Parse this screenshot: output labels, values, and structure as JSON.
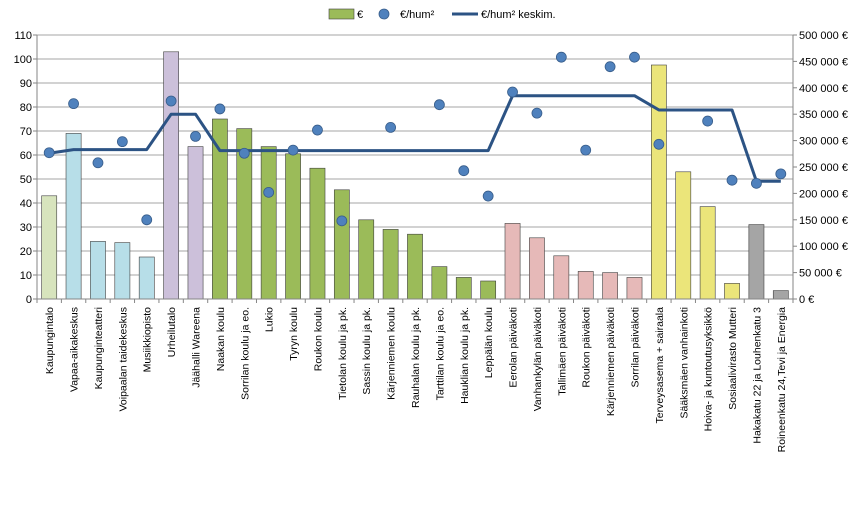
{
  "chart_data": {
    "type": "bar",
    "categories": [
      "Kaupungintalo",
      "Vapaa-aikakeskus",
      "Kaupunginteatteri",
      "Voipaalan taidekeskus",
      "Musiikkiopisto",
      "Urheilutalo",
      "Jäähalli Wareena",
      "Naakan koulu",
      "Sorrilan koulu ja eo.",
      "Lukio",
      "Tyryn koulu",
      "Roukon koulu",
      "Tietolan koulu ja pk.",
      "Sassin koulu ja pk.",
      "Kärjenniemen koulu",
      "Rauhalan koulu ja pk.",
      "Tarttilan koulu ja eo.",
      "Hauklian koulu ja pk.",
      "Leppälän koulu",
      "Eerolan päiväkoti",
      "Vanhankylän päiväkoti",
      "Tallimäen päiväkoti",
      "Roukon päiväkoti",
      "Kärjenniemen päiväkoti",
      "Sorrilan päiväkoti",
      "Terveysasema + sairaala",
      "Sääksmäen vanhainkoti",
      "Hoiva- ja kuntoutusyksikkö",
      "Sosiaalivirasto Mutteri",
      "Hakakatu 22 ja Louhenkatu 3",
      "Roineenkatu 24,Tevi ja Energia"
    ],
    "series": [
      {
        "name": "€",
        "axis": "left",
        "type": "bar",
        "values": [
          43,
          69,
          24,
          23.5,
          17.5,
          103,
          63.5,
          75,
          71,
          63.5,
          60.5,
          54.5,
          45.5,
          33,
          29,
          27,
          13.5,
          9,
          7.5,
          31.5,
          25.5,
          18,
          11.5,
          11,
          9,
          97.5,
          53,
          38.5,
          6.5,
          31,
          3.5
        ],
        "colors": [
          "#d7e4bd",
          "#b7dee8",
          "#b7dee8",
          "#b7dee8",
          "#b7dee8",
          "#ccc0da",
          "#ccc0da",
          "#9bbb59",
          "#9bbb59",
          "#9bbb59",
          "#9bbb59",
          "#9bbb59",
          "#9bbb59",
          "#9bbb59",
          "#9bbb59",
          "#9bbb59",
          "#9bbb59",
          "#9bbb59",
          "#9bbb59",
          "#e6b9b8",
          "#e6b9b8",
          "#e6b9b8",
          "#e6b9b8",
          "#e6b9b8",
          "#e6b9b8",
          "#ebe57a",
          "#ebe57a",
          "#ebe57a",
          "#ebe57a",
          "#a5a5a5",
          "#a5a5a5"
        ]
      },
      {
        "name": "€/hum²",
        "axis": "right",
        "type": "scatter",
        "color": "#4f81bd",
        "values": [
          277000,
          370000,
          258000,
          298000,
          150000,
          375000,
          308000,
          360000,
          276000,
          202000,
          282000,
          320000,
          148000,
          null,
          325000,
          null,
          368000,
          243000,
          195000,
          392000,
          352000,
          458000,
          282000,
          440000,
          458000,
          293000,
          null,
          337000,
          225000,
          219000,
          237000
        ]
      },
      {
        "name": "€/hum² keskim.",
        "axis": "right",
        "type": "line",
        "color": "#2c5384",
        "values": [
          276000,
          283000,
          283000,
          283000,
          283000,
          350000,
          350000,
          281000,
          281000,
          281000,
          281000,
          281000,
          281000,
          281000,
          281000,
          281000,
          281000,
          281000,
          281000,
          385000,
          385000,
          385000,
          385000,
          385000,
          385000,
          358000,
          358000,
          358000,
          358000,
          223000,
          223000
        ]
      }
    ],
    "y_left": {
      "min": 0,
      "max": 110,
      "step": 10,
      "ticks": [
        "0",
        "10",
        "20",
        "30",
        "40",
        "50",
        "60",
        "70",
        "80",
        "90",
        "100",
        "110"
      ]
    },
    "y_right": {
      "min": 0,
      "max": 500000,
      "step": 50000,
      "ticks": [
        "0 €",
        "50 000 €",
        "100 000 €",
        "150 000 €",
        "200 000 €",
        "250 000 €",
        "300 000 €",
        "350 000 €",
        "400 000 €",
        "450 000 €",
        "500 000 €"
      ]
    },
    "legend": {
      "placement": "top",
      "entries": [
        {
          "label": "€",
          "kind": "bar",
          "color": "#9bbb59"
        },
        {
          "label": "€/hum²",
          "kind": "marker",
          "color": "#4f81bd"
        },
        {
          "label": "€/hum² keskim.",
          "kind": "line",
          "color": "#2c5384"
        }
      ]
    },
    "grid": true,
    "colors": {
      "grid": "#868686",
      "axis": "#868686",
      "bar_stroke": "#404040"
    }
  }
}
